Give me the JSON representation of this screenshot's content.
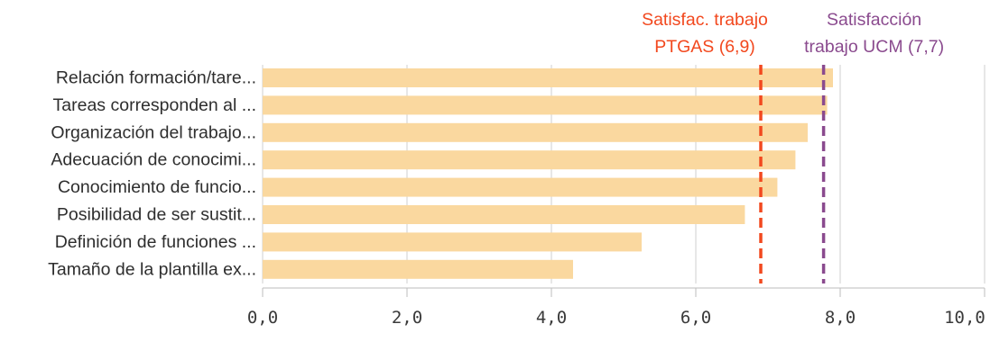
{
  "chart_data": {
    "type": "bar",
    "orientation": "horizontal",
    "title": "",
    "xlabel": "",
    "ylabel": "",
    "categories": [
      "Relación formación/tare...",
      "Tareas corresponden al ...",
      "Organización del trabajo...",
      "Adecuación de conocimi...",
      "Conocimiento de funcio...",
      "Posibilidad de ser sustit...",
      "Definición de funciones ...",
      "Tamaño de la plantilla ex..."
    ],
    "values": [
      7.9,
      7.82,
      7.55,
      7.38,
      7.13,
      6.68,
      5.25,
      4.3
    ],
    "xlim": [
      0,
      10
    ],
    "x_ticks": [
      0,
      2,
      4,
      6,
      8,
      10
    ],
    "x_tick_labels": [
      "0,0",
      "2,0",
      "4,0",
      "6,0",
      "8,0",
      "10,0"
    ],
    "grid": "vertical",
    "bar_color": "#fad89f",
    "reference_lines": [
      {
        "label_lines": [
          "Satisfac. trabajo",
          "PTGAS (6,9)"
        ],
        "value": 6.9,
        "color": "#f2481e",
        "style": "dashed"
      },
      {
        "label_lines": [
          "Satisfacción",
          "trabajo UCM (7,7)"
        ],
        "value": 7.77,
        "color": "#8a4a8e",
        "style": "dashed"
      }
    ]
  }
}
